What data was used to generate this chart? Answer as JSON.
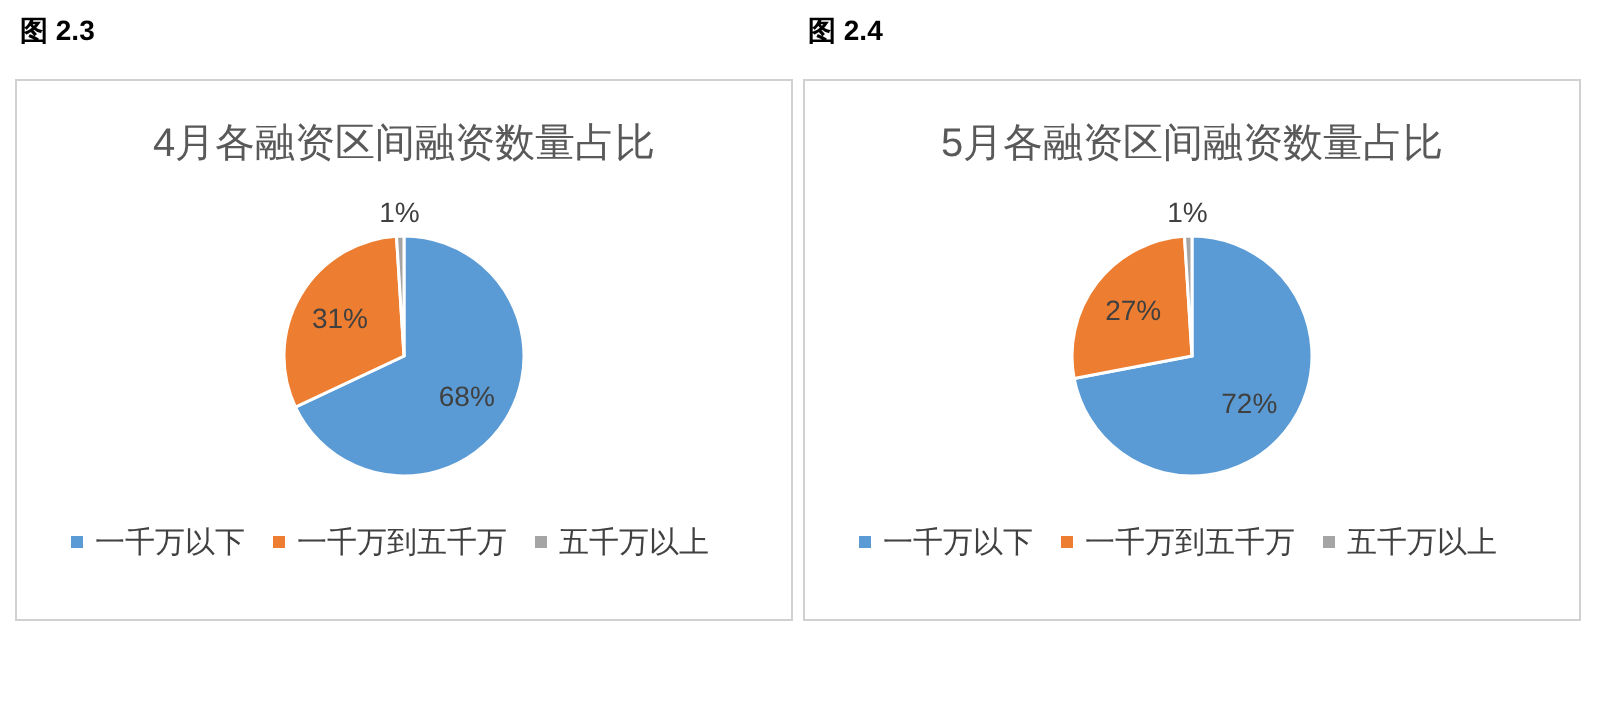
{
  "chart_data": [
    {
      "type": "pie",
      "title": "4月各融资区间融资数量占比",
      "annotations": [
        "图 2.3"
      ],
      "categories": [
        "一千万以下",
        "一千万到五千万",
        "五千万以上"
      ],
      "values": [
        68,
        31,
        1
      ],
      "value_labels": [
        "68%",
        "31%",
        "1%"
      ],
      "colors": [
        "#5b9bd5",
        "#ed7d31",
        "#a5a5a5"
      ],
      "legend": "bottom"
    },
    {
      "type": "pie",
      "title": "5月各融资区间融资数量占比",
      "annotations": [
        "图 2.4"
      ],
      "categories": [
        "一千万以下",
        "一千万到五千万",
        "五千万以上"
      ],
      "values": [
        72,
        27,
        1
      ],
      "value_labels": [
        "72%",
        "27%",
        "1%"
      ],
      "colors": [
        "#5b9bd5",
        "#ed7d31",
        "#a5a5a5"
      ],
      "legend": "bottom"
    }
  ]
}
